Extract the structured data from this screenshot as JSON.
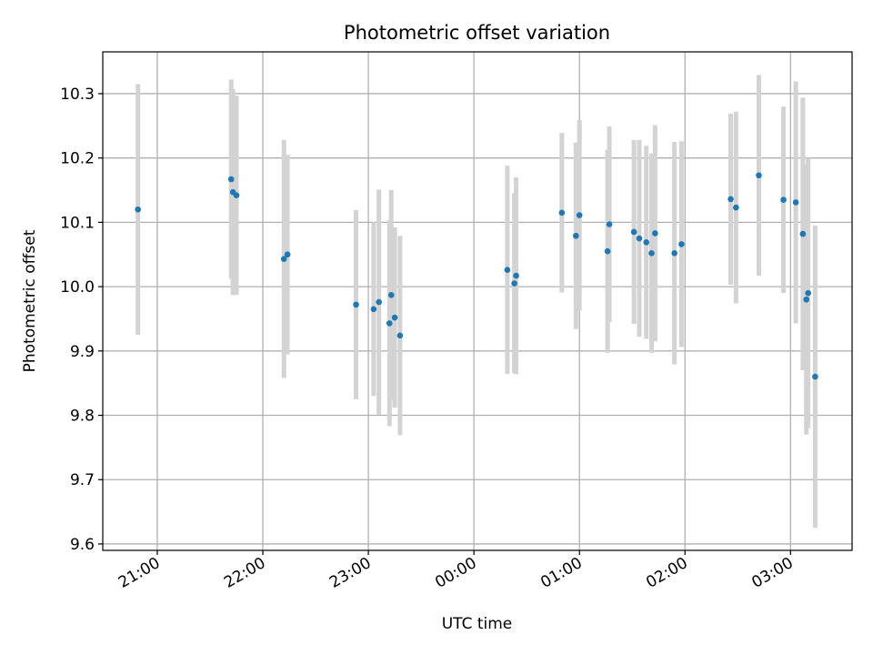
{
  "chart_data": {
    "type": "scatter",
    "title": "Photometric offset variation",
    "xlabel": "UTC time",
    "ylabel": "Photometric offset",
    "x_unit": "UTC",
    "x_range": [
      "20:29",
      "03:35"
    ],
    "ylim": [
      9.59,
      10.365
    ],
    "x_ticks": [
      "21:00",
      "22:00",
      "23:00",
      "00:00",
      "01:00",
      "02:00",
      "03:00"
    ],
    "y_ticks": [
      "9.6",
      "9.7",
      "9.8",
      "9.9",
      "10.0",
      "10.1",
      "10.2",
      "10.3"
    ],
    "grid": true,
    "legend": "none",
    "colors": {
      "point": "#1f77b4",
      "errorbar": "#d3d3d3",
      "grid": "#b0b0b0"
    },
    "points": [
      {
        "t": "20:49",
        "y": 10.12,
        "err": 0.195
      },
      {
        "t": "21:42",
        "y": 10.167,
        "err": 0.155
      },
      {
        "t": "21:43",
        "y": 10.147,
        "err": 0.16
      },
      {
        "t": "21:45",
        "y": 10.142,
        "err": 0.155
      },
      {
        "t": "22:12",
        "y": 10.043,
        "err": 0.185
      },
      {
        "t": "22:14",
        "y": 10.05,
        "err": 0.155
      },
      {
        "t": "22:53",
        "y": 9.972,
        "err": 0.147
      },
      {
        "t": "23:03",
        "y": 9.965,
        "err": 0.135
      },
      {
        "t": "23:06",
        "y": 9.976,
        "err": 0.175
      },
      {
        "t": "23:12",
        "y": 9.943,
        "err": 0.16
      },
      {
        "t": "23:13",
        "y": 9.987,
        "err": 0.163
      },
      {
        "t": "23:15",
        "y": 9.952,
        "err": 0.14
      },
      {
        "t": "23:18",
        "y": 9.924,
        "err": 0.155
      },
      {
        "t": "00:19",
        "y": 10.026,
        "err": 0.162
      },
      {
        "t": "00:23",
        "y": 10.005,
        "err": 0.14
      },
      {
        "t": "00:24",
        "y": 10.017,
        "err": 0.153
      },
      {
        "t": "00:50",
        "y": 10.115,
        "err": 0.124
      },
      {
        "t": "00:58",
        "y": 10.079,
        "err": 0.145
      },
      {
        "t": "01:00",
        "y": 10.111,
        "err": 0.148
      },
      {
        "t": "01:16",
        "y": 10.055,
        "err": 0.158
      },
      {
        "t": "01:17",
        "y": 10.097,
        "err": 0.152
      },
      {
        "t": "01:31",
        "y": 10.085,
        "err": 0.143
      },
      {
        "t": "01:34",
        "y": 10.075,
        "err": 0.153
      },
      {
        "t": "01:38",
        "y": 10.069,
        "err": 0.15
      },
      {
        "t": "01:41",
        "y": 10.052,
        "err": 0.155
      },
      {
        "t": "01:43",
        "y": 10.083,
        "err": 0.168
      },
      {
        "t": "01:54",
        "y": 10.052,
        "err": 0.173
      },
      {
        "t": "01:58",
        "y": 10.066,
        "err": 0.16
      },
      {
        "t": "02:26",
        "y": 10.136,
        "err": 0.133
      },
      {
        "t": "02:29",
        "y": 10.123,
        "err": 0.149
      },
      {
        "t": "02:42",
        "y": 10.173,
        "err": 0.156
      },
      {
        "t": "02:56",
        "y": 10.135,
        "err": 0.145
      },
      {
        "t": "03:03",
        "y": 10.131,
        "err": 0.188
      },
      {
        "t": "03:07",
        "y": 10.082,
        "err": 0.212
      },
      {
        "t": "03:09",
        "y": 9.98,
        "err": 0.21
      },
      {
        "t": "03:10",
        "y": 9.99,
        "err": 0.21
      },
      {
        "t": "03:14",
        "y": 9.86,
        "err": 0.235
      }
    ]
  }
}
